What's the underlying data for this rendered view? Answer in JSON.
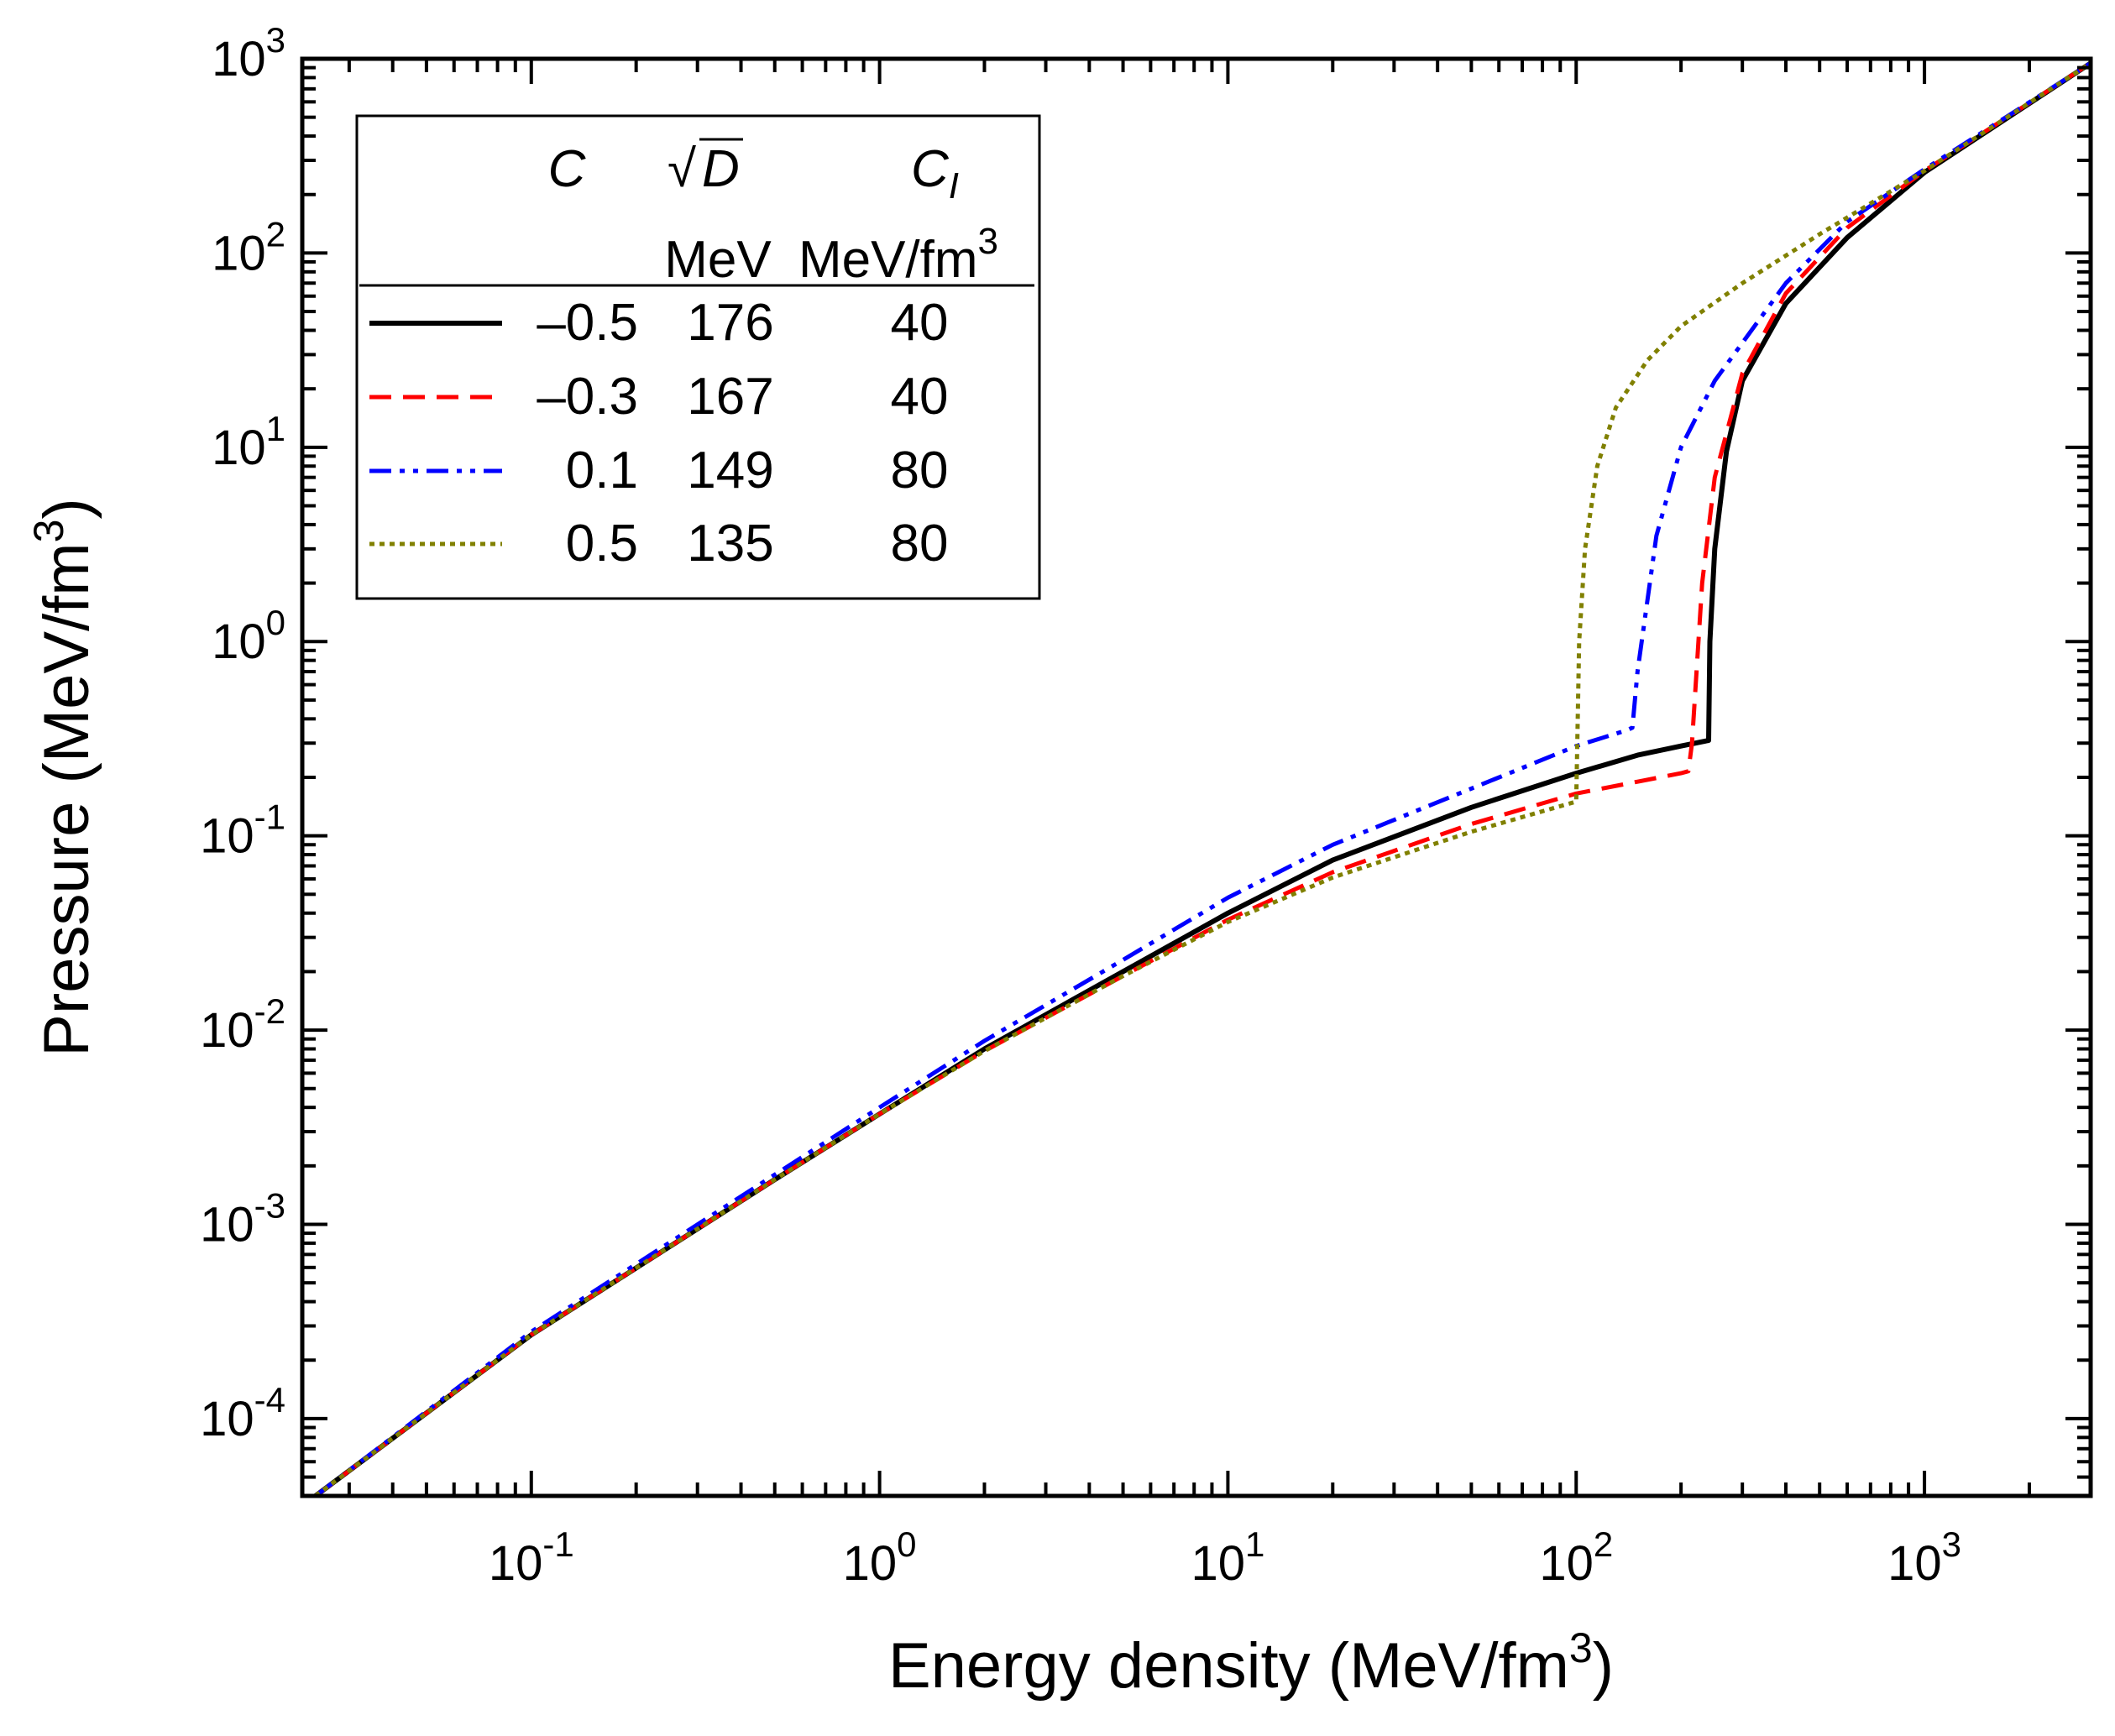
{
  "chart_data": {
    "type": "line",
    "xlabel": "Energy density (MeV/fm3)",
    "xlabel_parts": {
      "main": "Energy density (MeV/fm",
      "sup": "3",
      "close": ")"
    },
    "ylabel": "Pressure (MeV/fm3)",
    "ylabel_parts": {
      "main": "Pressure (MeV/fm",
      "sup": "3",
      "close": ")"
    },
    "xscale": "log",
    "yscale": "log",
    "xlim": [
      0.022,
      3000
    ],
    "ylim": [
      4e-05,
      1000
    ],
    "x_ticks": [
      {
        "value": 0.1,
        "base": "10",
        "exp": "-1"
      },
      {
        "value": 1,
        "base": "10",
        "exp": "0"
      },
      {
        "value": 10,
        "base": "10",
        "exp": "1"
      },
      {
        "value": 100,
        "base": "10",
        "exp": "2"
      },
      {
        "value": 1000,
        "base": "10",
        "exp": "3"
      }
    ],
    "y_ticks": [
      {
        "value": 0.0001,
        "base": "10",
        "exp": "-4"
      },
      {
        "value": 0.001,
        "base": "10",
        "exp": "-3"
      },
      {
        "value": 0.01,
        "base": "10",
        "exp": "-2"
      },
      {
        "value": 0.1,
        "base": "10",
        "exp": "-1"
      },
      {
        "value": 1,
        "base": "10",
        "exp": "0"
      },
      {
        "value": 10,
        "base": "10",
        "exp": "1"
      },
      {
        "value": 100,
        "base": "10",
        "exp": "2"
      },
      {
        "value": 1000,
        "base": "10",
        "exp": "3"
      }
    ],
    "legend": {
      "placement": "top-left",
      "headers": {
        "c": "C",
        "sqrt_d": "D",
        "sqrt_symbol": "√",
        "cl": "C",
        "cl_sub": "I"
      },
      "units": {
        "sqrt_d": "MeV",
        "cl_main": "MeV/fm",
        "cl_sup": "3"
      }
    },
    "series": [
      {
        "name": "-0.5",
        "c": "–0.5",
        "sqrt_d": "176",
        "cl": "40",
        "color": "#000000",
        "style": "solid",
        "x": [
          0.024,
          0.1,
          0.5,
          1,
          2,
          5,
          10,
          20,
          50,
          100,
          150,
          200,
          240,
          240,
          242,
          250,
          270,
          300,
          400,
          600,
          1000,
          3000
        ],
        "y": [
          4e-05,
          0.00027,
          0.0017,
          0.0037,
          0.008,
          0.02,
          0.04,
          0.075,
          0.14,
          0.21,
          0.26,
          0.29,
          0.31,
          0.31,
          1.0,
          3.0,
          9.5,
          22,
          55,
          120,
          260,
          950
        ]
      },
      {
        "name": "-0.3",
        "c": "–0.3",
        "sqrt_d": "167",
        "cl": "40",
        "color": "#ff0000",
        "style": "dashed",
        "x": [
          0.024,
          0.1,
          0.5,
          1,
          2,
          5,
          10,
          20,
          50,
          100,
          150,
          200,
          210,
          215,
          215,
          230,
          250,
          300,
          400,
          600,
          1000,
          3000
        ],
        "y": [
          4e-05,
          0.00027,
          0.0017,
          0.0037,
          0.0078,
          0.019,
          0.037,
          0.065,
          0.115,
          0.165,
          0.19,
          0.21,
          0.215,
          0.3,
          0.3,
          2.0,
          7.0,
          24,
          62,
          135,
          265,
          950
        ]
      },
      {
        "name": "0.1",
        "c": "0.1",
        "sqrt_d": "149",
        "cl": "80",
        "color": "#0000ff",
        "style": "dashdotdot",
        "x": [
          0.024,
          0.1,
          0.5,
          1,
          2,
          5,
          10,
          20,
          50,
          100,
          140,
          145,
          145,
          150,
          170,
          200,
          250,
          400,
          600,
          1000,
          3000
        ],
        "y": [
          4e-05,
          0.00028,
          0.0018,
          0.004,
          0.0088,
          0.023,
          0.048,
          0.09,
          0.175,
          0.29,
          0.35,
          0.36,
          0.36,
          0.7,
          3.5,
          10,
          22,
          70,
          145,
          270,
          950
        ]
      },
      {
        "name": "0.5",
        "c": "0.5",
        "sqrt_d": "135",
        "cl": "80",
        "color": "#808000",
        "style": "dotted",
        "x": [
          0.024,
          0.1,
          0.5,
          1,
          2,
          5,
          10,
          20,
          50,
          100,
          100,
          102,
          106,
          115,
          130,
          160,
          200,
          300,
          500,
          1000,
          3000
        ],
        "y": [
          4e-05,
          0.00027,
          0.0017,
          0.0037,
          0.0078,
          0.019,
          0.036,
          0.061,
          0.105,
          0.15,
          0.15,
          1.0,
          3.0,
          8.0,
          16,
          28,
          42,
          70,
          125,
          265,
          950
        ]
      }
    ]
  }
}
